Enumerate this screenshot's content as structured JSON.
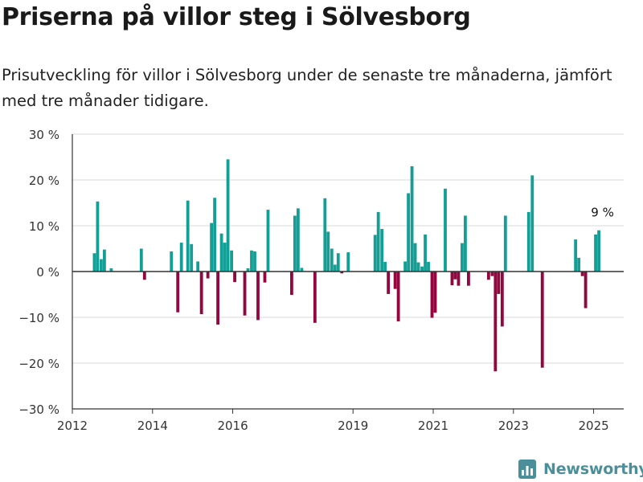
{
  "title": "Priserna på villor steg i Sölvesborg",
  "subtitle": "Prisutveckling för villor i Sölvesborg under de senaste tre månaderna, jämfört med tre månader tidigare.",
  "brand": {
    "name": "Newsworthy",
    "logo_icon": "bar-chart-logo-icon",
    "color": "#4a8f99"
  },
  "colors": {
    "positive": "#139f96",
    "negative": "#93063f",
    "grid": "#d9d9d9",
    "axis": "#333333"
  },
  "chart_data": {
    "type": "bar",
    "xlim": [
      2012,
      2025.75
    ],
    "ylim": [
      -30,
      30
    ],
    "y_ticks": [
      -30,
      -20,
      -10,
      0,
      10,
      20,
      30
    ],
    "y_tick_labels": [
      "−30 %",
      "−20 %",
      "−10 %",
      "0 %",
      "10 %",
      "20 %",
      "30 %"
    ],
    "x_ticks": [
      2012,
      2014,
      2016,
      2019,
      2021,
      2023,
      2025
    ],
    "x_tick_labels": [
      "2012",
      "2014",
      "2016",
      "2019",
      "2021",
      "2023",
      "2025"
    ],
    "bar_width_years": 0.0833,
    "annotation": {
      "x": 2025.1,
      "y": 9,
      "text": "9 %"
    },
    "points": [
      {
        "x": 2012.55,
        "y": 4
      },
      {
        "x": 2012.63,
        "y": 15.3
      },
      {
        "x": 2012.72,
        "y": 2.7
      },
      {
        "x": 2012.8,
        "y": 4.8
      },
      {
        "x": 2012.97,
        "y": 0.7
      },
      {
        "x": 2013.72,
        "y": 5
      },
      {
        "x": 2013.8,
        "y": -1.8
      },
      {
        "x": 2014.47,
        "y": 4.4
      },
      {
        "x": 2014.63,
        "y": -8.9
      },
      {
        "x": 2014.72,
        "y": 6.3
      },
      {
        "x": 2014.88,
        "y": 15.5
      },
      {
        "x": 2014.97,
        "y": 6
      },
      {
        "x": 2015.13,
        "y": 2.2
      },
      {
        "x": 2015.22,
        "y": -9.3
      },
      {
        "x": 2015.38,
        "y": -1.5
      },
      {
        "x": 2015.47,
        "y": 10.6
      },
      {
        "x": 2015.55,
        "y": 16.1
      },
      {
        "x": 2015.63,
        "y": -11.6
      },
      {
        "x": 2015.72,
        "y": 8.3
      },
      {
        "x": 2015.8,
        "y": 6.3
      },
      {
        "x": 2015.88,
        "y": 24.5
      },
      {
        "x": 2015.97,
        "y": 4.6
      },
      {
        "x": 2016.05,
        "y": -2.3
      },
      {
        "x": 2016.3,
        "y": -9.6
      },
      {
        "x": 2016.38,
        "y": 0.7
      },
      {
        "x": 2016.47,
        "y": 4.6
      },
      {
        "x": 2016.55,
        "y": 4.4
      },
      {
        "x": 2016.63,
        "y": -10.6
      },
      {
        "x": 2016.8,
        "y": -2.4
      },
      {
        "x": 2016.88,
        "y": 13.5
      },
      {
        "x": 2017.47,
        "y": -5.1
      },
      {
        "x": 2017.55,
        "y": 12.2
      },
      {
        "x": 2017.63,
        "y": 13.8
      },
      {
        "x": 2017.72,
        "y": 0.8
      },
      {
        "x": 2018.05,
        "y": -11.2
      },
      {
        "x": 2018.3,
        "y": 16
      },
      {
        "x": 2018.38,
        "y": 8.7
      },
      {
        "x": 2018.47,
        "y": 5
      },
      {
        "x": 2018.55,
        "y": 1.5
      },
      {
        "x": 2018.63,
        "y": 4
      },
      {
        "x": 2018.72,
        "y": -0.4
      },
      {
        "x": 2018.88,
        "y": 4.2
      },
      {
        "x": 2019.55,
        "y": 8
      },
      {
        "x": 2019.63,
        "y": 13
      },
      {
        "x": 2019.72,
        "y": 9.3
      },
      {
        "x": 2019.8,
        "y": 2.1
      },
      {
        "x": 2019.88,
        "y": -4.9
      },
      {
        "x": 2020.05,
        "y": -3.8
      },
      {
        "x": 2020.13,
        "y": -10.9
      },
      {
        "x": 2020.3,
        "y": 2.2
      },
      {
        "x": 2020.38,
        "y": 17.1
      },
      {
        "x": 2020.47,
        "y": 23
      },
      {
        "x": 2020.55,
        "y": 6.2
      },
      {
        "x": 2020.63,
        "y": 2
      },
      {
        "x": 2020.72,
        "y": 1.1
      },
      {
        "x": 2020.8,
        "y": 8.1
      },
      {
        "x": 2020.88,
        "y": 2.1
      },
      {
        "x": 2020.97,
        "y": -10.1
      },
      {
        "x": 2021.05,
        "y": -9
      },
      {
        "x": 2021.3,
        "y": 18.1
      },
      {
        "x": 2021.47,
        "y": -3
      },
      {
        "x": 2021.55,
        "y": -1.7
      },
      {
        "x": 2021.63,
        "y": -3.1
      },
      {
        "x": 2021.72,
        "y": 6.2
      },
      {
        "x": 2021.8,
        "y": 12.2
      },
      {
        "x": 2021.88,
        "y": -3.1
      },
      {
        "x": 2022.38,
        "y": -1.8
      },
      {
        "x": 2022.47,
        "y": -1
      },
      {
        "x": 2022.55,
        "y": -21.8
      },
      {
        "x": 2022.63,
        "y": -4.9
      },
      {
        "x": 2022.72,
        "y": -12
      },
      {
        "x": 2022.8,
        "y": 12.2
      },
      {
        "x": 2023.38,
        "y": 13
      },
      {
        "x": 2023.47,
        "y": 21
      },
      {
        "x": 2023.72,
        "y": -21
      },
      {
        "x": 2024.55,
        "y": 7
      },
      {
        "x": 2024.63,
        "y": 3
      },
      {
        "x": 2024.72,
        "y": -1
      },
      {
        "x": 2024.8,
        "y": -8
      },
      {
        "x": 2025.05,
        "y": 8.1
      },
      {
        "x": 2025.13,
        "y": 9
      }
    ]
  }
}
